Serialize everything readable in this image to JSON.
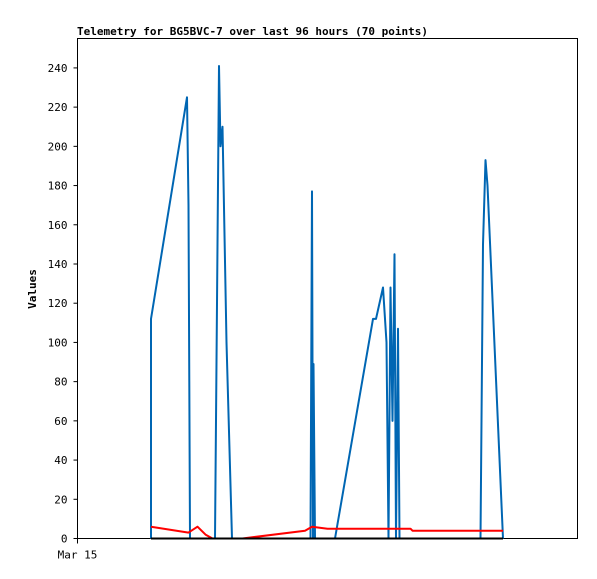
{
  "chart_data": {
    "type": "line",
    "title": "Telemetry for BG5BVC-7 over last 96 hours (70 points)",
    "xlabel": "",
    "ylabel": "Values",
    "x_tick_labels": [
      "Mar 15"
    ],
    "ylim": [
      0,
      255
    ],
    "xlim": [
      0,
      100
    ],
    "y_ticks": [
      0,
      20,
      40,
      60,
      80,
      100,
      120,
      140,
      160,
      180,
      200,
      220,
      240
    ],
    "grid": false,
    "legend": "none",
    "series": [
      {
        "color": "#0066b3",
        "points": [
          [
            14.7,
            0
          ],
          [
            14.7,
            112
          ],
          [
            21.9,
            225
          ],
          [
            22.2,
            170
          ],
          [
            22.5,
            0
          ],
          [
            27.5,
            0
          ],
          [
            27.9,
            120
          ],
          [
            28.3,
            241
          ],
          [
            28.6,
            200
          ],
          [
            29.0,
            210
          ],
          [
            29.8,
            100
          ],
          [
            30.9,
            0
          ],
          [
            31.3,
            0
          ],
          [
            46.6,
            0
          ],
          [
            46.9,
            177
          ],
          [
            47.1,
            0
          ],
          [
            47.2,
            89
          ],
          [
            47.5,
            0
          ],
          [
            51.5,
            0
          ],
          [
            59.1,
            112
          ],
          [
            59.7,
            112
          ],
          [
            61.1,
            128
          ],
          [
            61.8,
            100
          ],
          [
            62.2,
            0
          ],
          [
            62.6,
            128
          ],
          [
            63.0,
            60
          ],
          [
            63.4,
            145
          ],
          [
            63.7,
            0
          ],
          [
            64.1,
            107
          ],
          [
            64.4,
            0
          ],
          [
            80.6,
            0
          ],
          [
            81.1,
            150
          ],
          [
            81.6,
            193
          ],
          [
            82.0,
            180
          ],
          [
            85.1,
            0
          ]
        ]
      },
      {
        "color": "#ff0000",
        "points": [
          [
            14.7,
            6
          ],
          [
            22.2,
            3
          ],
          [
            24.0,
            6
          ],
          [
            25.6,
            2
          ],
          [
            27.0,
            0
          ],
          [
            33.0,
            0
          ],
          [
            45.5,
            4
          ],
          [
            46.9,
            6
          ],
          [
            50.0,
            5
          ],
          [
            66.6,
            5
          ],
          [
            67.0,
            4
          ],
          [
            85.1,
            4
          ]
        ]
      },
      {
        "color": "#000000",
        "points": [
          [
            14.7,
            0
          ],
          [
            85.1,
            0
          ]
        ]
      }
    ]
  }
}
